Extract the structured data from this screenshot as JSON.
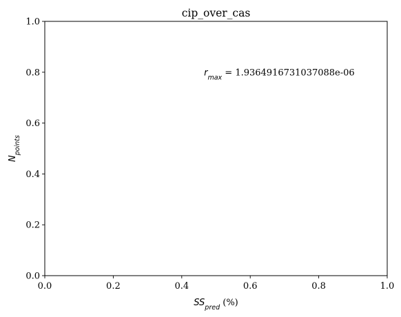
{
  "chart_data": {
    "type": "scatter",
    "title": "cip_over_cas",
    "xlabel": {
      "base": "SS",
      "sub": "pred",
      "suffix": " (%)"
    },
    "ylabel": {
      "base": "N",
      "sub": "points"
    },
    "xlim": [
      0.0,
      1.0
    ],
    "ylim": [
      0.0,
      1.0
    ],
    "xticks": [
      0.0,
      0.2,
      0.4,
      0.6,
      0.8,
      1.0
    ],
    "yticks": [
      0.0,
      0.2,
      0.4,
      0.6,
      0.8,
      1.0
    ],
    "xtick_labels": [
      "0.0",
      "0.2",
      "0.4",
      "0.6",
      "0.8",
      "1.0"
    ],
    "ytick_labels": [
      "0.0",
      "0.2",
      "0.4",
      "0.6",
      "0.8",
      "1.0"
    ],
    "series": [],
    "annotation": {
      "base": "r",
      "sub": "max",
      "value_text": " = 1.9364916731037088e-06",
      "x": 0.465,
      "y": 0.8
    },
    "grid": false,
    "legend": "none"
  }
}
